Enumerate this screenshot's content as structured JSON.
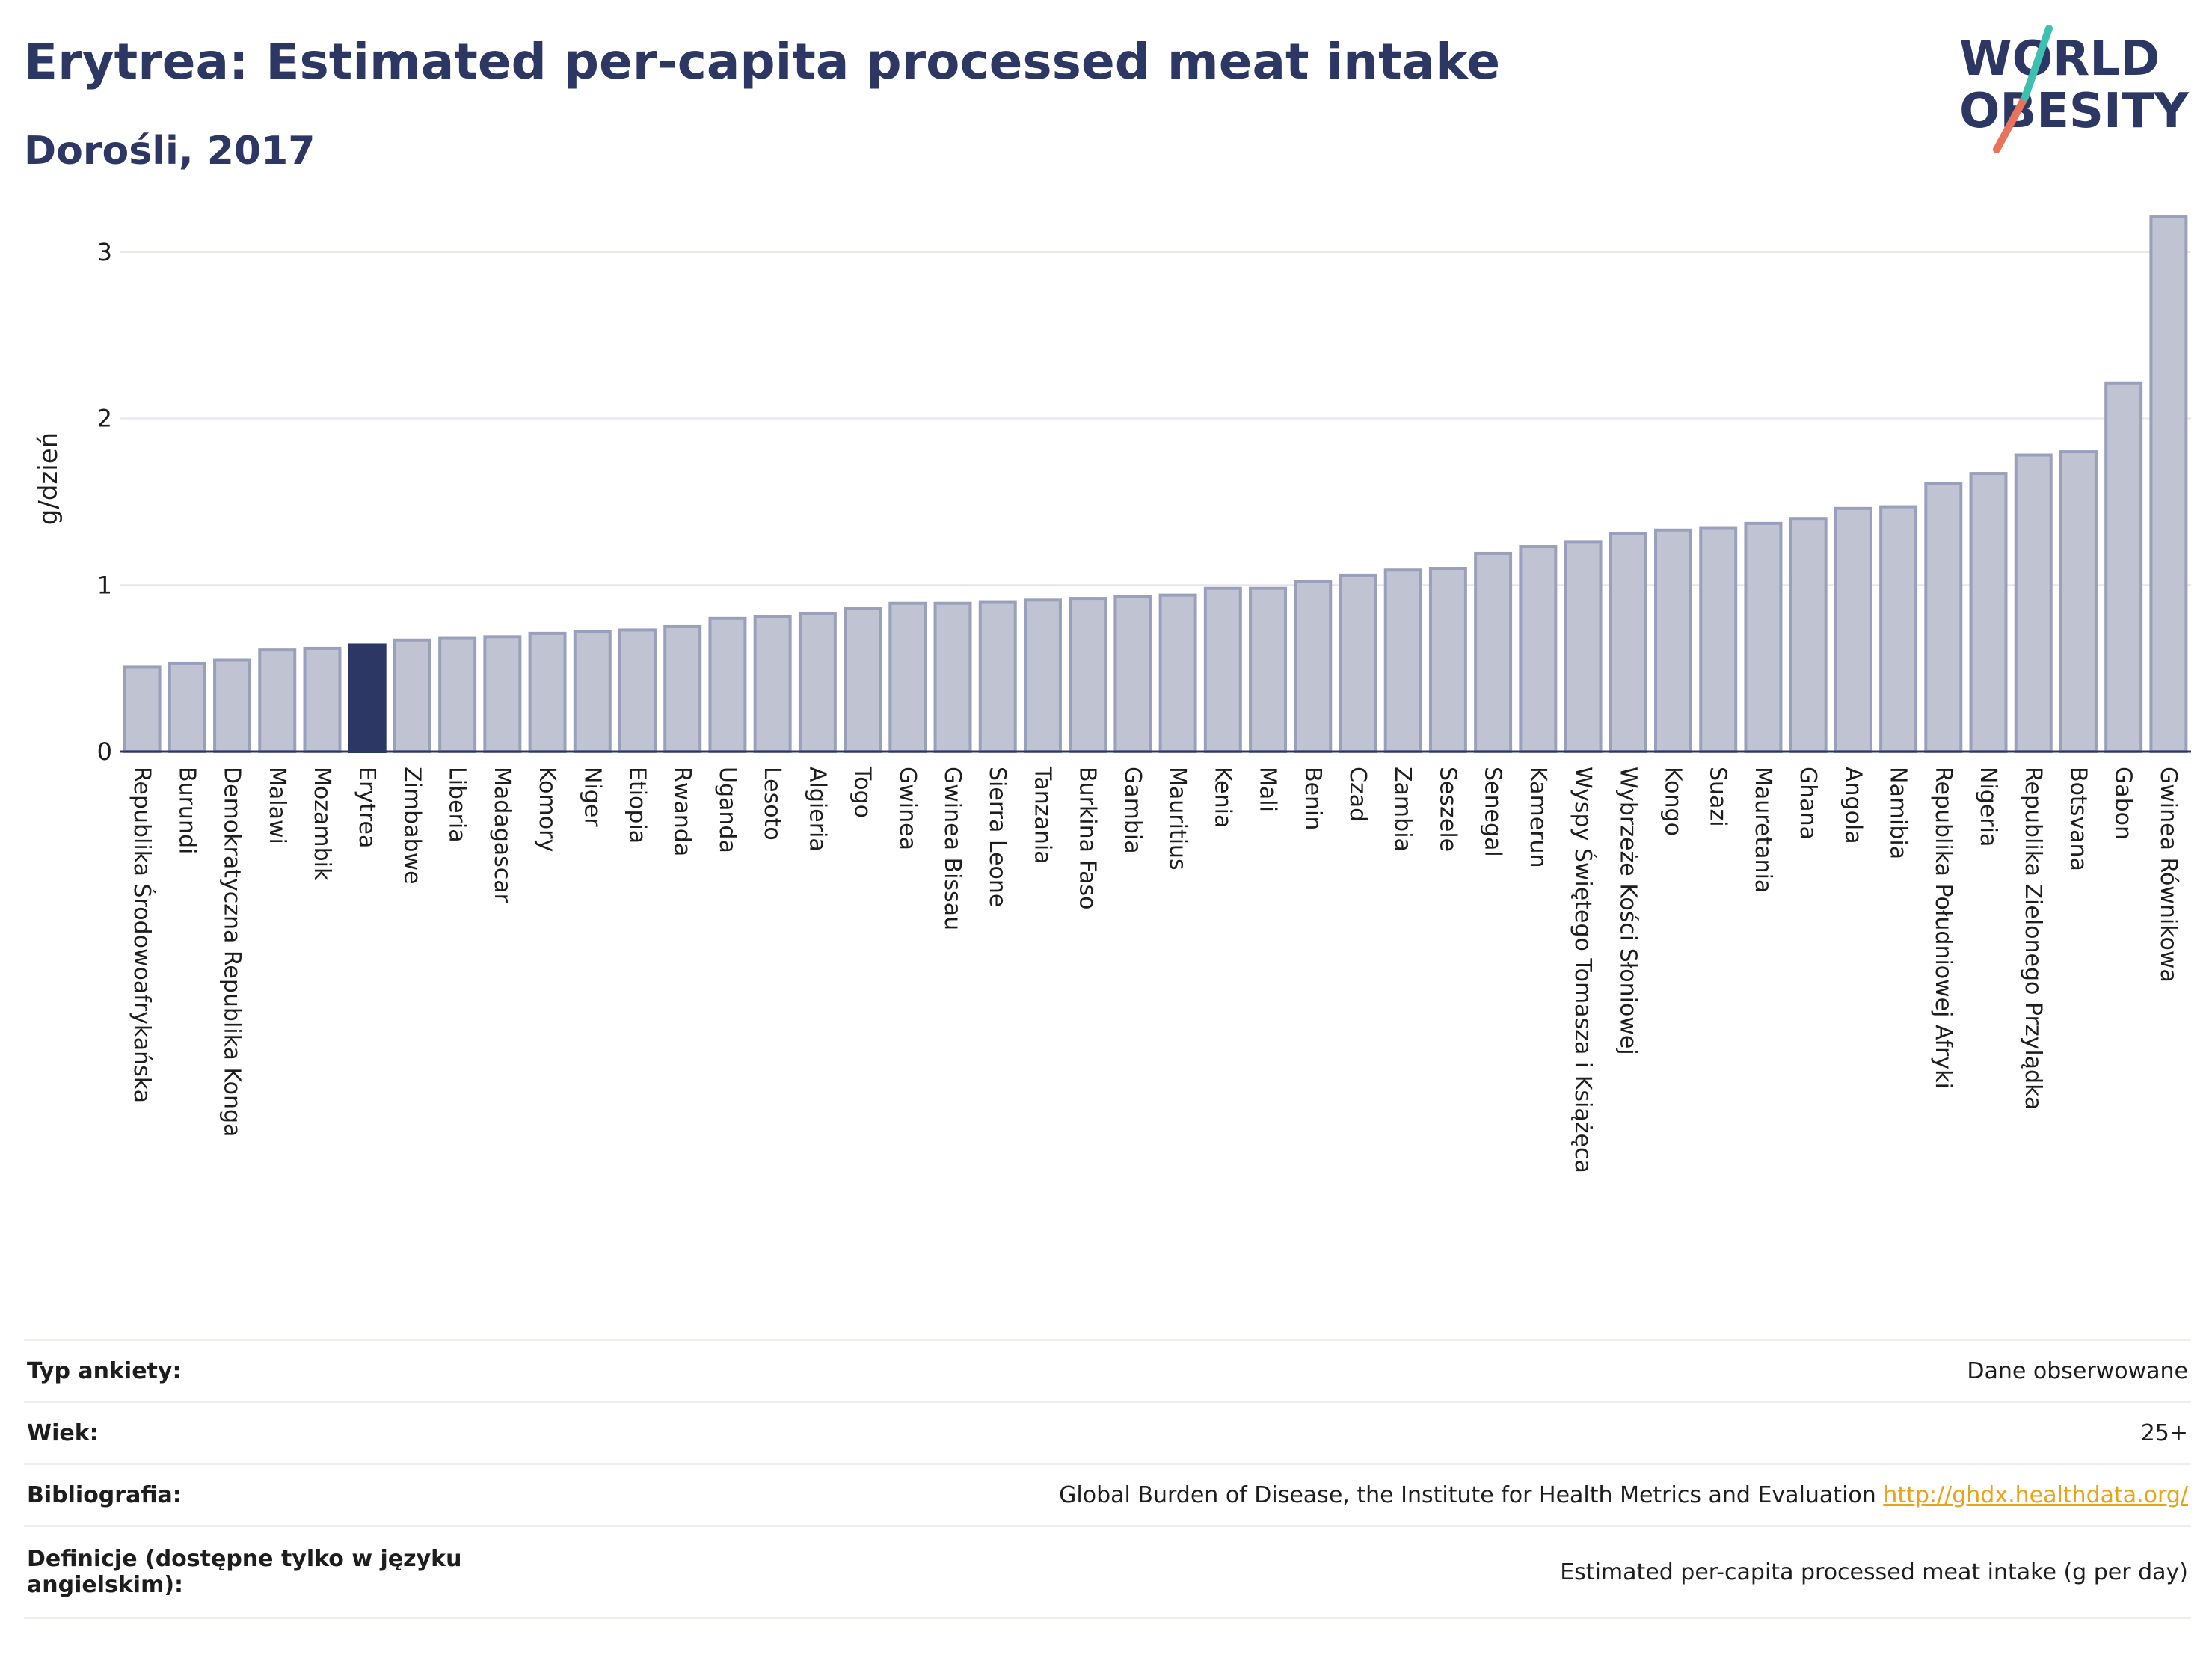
{
  "header": {
    "title": "Erytrea: Estimated per-capita processed meat intake",
    "subtitle": "Dorośli, 2017"
  },
  "logo": {
    "line1": "WORLD",
    "line2": "OBESITY"
  },
  "colors": {
    "bar": "#bfc3d2",
    "bar_border": "#9aa0bb",
    "highlight": "#2c3763",
    "grid": "#e6e6ee",
    "axis": "#2c3763"
  },
  "chart_data": {
    "type": "bar",
    "ylabel": "g/dzień",
    "ylim": [
      0,
      3.3
    ],
    "yticks": [
      0,
      1,
      2,
      3
    ],
    "highlight": "Erytrea",
    "categories": [
      "Republika Środowoafrykańska",
      "Burundi",
      "Demokratyczna Republika Konga",
      "Malawi",
      "Mozambik",
      "Erytrea",
      "Zimbabwe",
      "Liberia",
      "Madagascar",
      "Komory",
      "Niger",
      "Etiopia",
      "Rwanda",
      "Uganda",
      "Lesoto",
      "Algieria",
      "Togo",
      "Gwinea",
      "Gwinea Bissau",
      "Sierra Leone",
      "Tanzania",
      "Burkina Faso",
      "Gambia",
      "Mauritius",
      "Kenia",
      "Mali",
      "Benin",
      "Czad",
      "Zambia",
      "Seszele",
      "Senegal",
      "Kamerun",
      "Wyspy Świętego Tomasza i Książęca",
      "Wybrzeże Kości Słoniowej",
      "Kongo",
      "Suazi",
      "Mauretania",
      "Ghana",
      "Angola",
      "Namibia",
      "Republika Południowej Afryki",
      "Nigeria",
      "Republika Zielonego Przylądka",
      "Botsvana",
      "Gabon",
      "Gwinea Równikowa"
    ],
    "values": [
      0.51,
      0.53,
      0.55,
      0.61,
      0.62,
      0.64,
      0.67,
      0.68,
      0.69,
      0.71,
      0.72,
      0.73,
      0.75,
      0.8,
      0.81,
      0.83,
      0.86,
      0.89,
      0.89,
      0.9,
      0.91,
      0.92,
      0.93,
      0.94,
      0.98,
      0.98,
      1.02,
      1.06,
      1.09,
      1.1,
      1.19,
      1.23,
      1.26,
      1.31,
      1.33,
      1.34,
      1.37,
      1.4,
      1.46,
      1.47,
      1.61,
      1.67,
      1.78,
      1.8,
      2.21,
      3.21
    ]
  },
  "info": {
    "survey_type_label": "Typ ankiety:",
    "survey_type_value": "Dane obserwowane",
    "age_label": "Wiek:",
    "age_value": "25+",
    "bibliography_label": "Bibliografia:",
    "bibliography_value": "Global Burden of Disease, the Institute for Health Metrics and Evaluation ",
    "bibliography_link": "http://ghdx.healthdata.org/",
    "definitions_label": "Definicje (dostępne tylko w języku angielskim):",
    "definitions_value": "Estimated per-capita processed meat intake (g per day)"
  }
}
